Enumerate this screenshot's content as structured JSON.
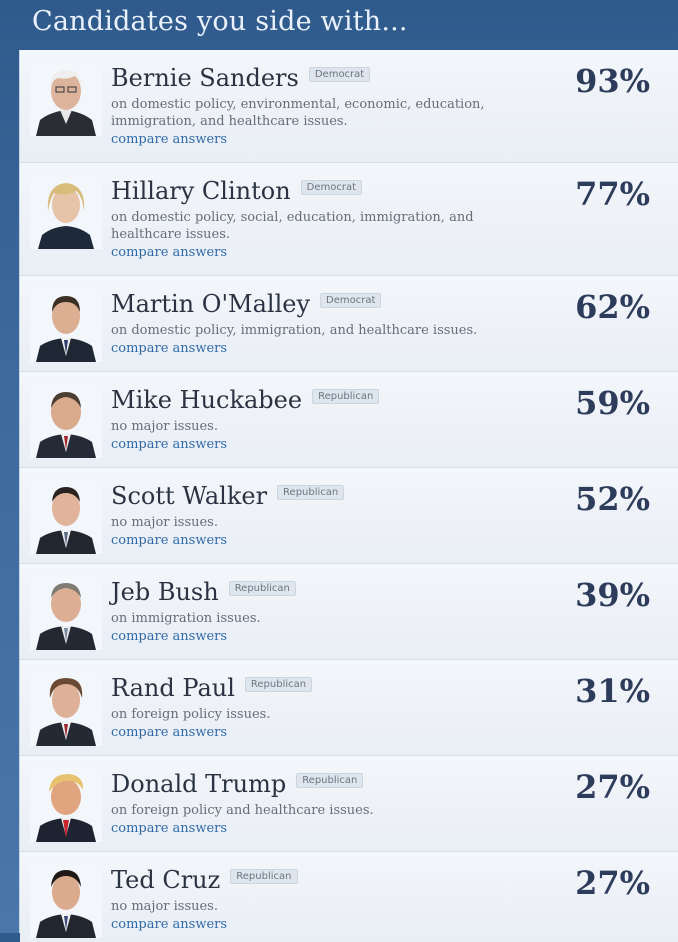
{
  "header": {
    "title": "Candidates you side with..."
  },
  "candidates": [
    {
      "name": "Bernie Sanders",
      "party": "Democrat",
      "issues": "on domestic policy, environmental, economic, education, immigration, and healthcare issues.",
      "compare": "compare answers",
      "percent": "93%"
    },
    {
      "name": "Hillary Clinton",
      "party": "Democrat",
      "issues": "on domestic policy, social, education, immigration, and healthcare issues.",
      "compare": "compare answers",
      "percent": "77%"
    },
    {
      "name": "Martin O'Malley",
      "party": "Democrat",
      "issues": "on domestic policy, immigration, and healthcare issues.",
      "compare": "compare answers",
      "percent": "62%"
    },
    {
      "name": "Mike Huckabee",
      "party": "Republican",
      "issues": "no major issues.",
      "compare": "compare answers",
      "percent": "59%"
    },
    {
      "name": "Scott Walker",
      "party": "Republican",
      "issues": "no major issues.",
      "compare": "compare answers",
      "percent": "52%"
    },
    {
      "name": "Jeb Bush",
      "party": "Republican",
      "issues": "on immigration issues.",
      "compare": "compare answers",
      "percent": "39%"
    },
    {
      "name": "Rand Paul",
      "party": "Republican",
      "issues": "on foreign policy issues.",
      "compare": "compare answers",
      "percent": "31%"
    },
    {
      "name": "Donald Trump",
      "party": "Republican",
      "issues": "on foreign policy and healthcare issues.",
      "compare": "compare answers",
      "percent": "27%"
    },
    {
      "name": "Ted Cruz",
      "party": "Republican",
      "issues": "no major issues.",
      "compare": "compare answers",
      "percent": "27%"
    }
  ]
}
